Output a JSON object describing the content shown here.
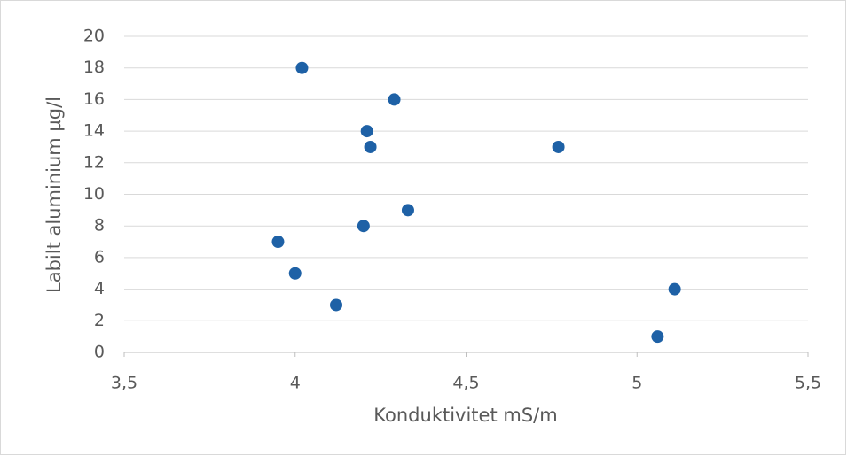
{
  "chart_data": {
    "type": "scatter",
    "x_label": "Konduktivitet mS/m",
    "y_label": "Labilt aluminium µg/l",
    "series": [
      {
        "color": "#1e61a6",
        "x": [
          4.02,
          4.29,
          4.21,
          4.22,
          4.77,
          4.33,
          4.2,
          3.95,
          4.0,
          4.12,
          5.11,
          5.06
        ],
        "values": [
          18,
          16,
          14,
          13,
          13,
          9,
          8,
          7,
          5,
          3,
          4,
          1
        ]
      }
    ],
    "xlim": [
      3.5,
      5.5
    ],
    "xticks": [
      {
        "value": 3.5,
        "label": "3,5"
      },
      4,
      {
        "value": 4.5,
        "label": "4,5"
      },
      5,
      {
        "value": 5.5,
        "label": "5,5"
      }
    ],
    "ylim": [
      0,
      20
    ],
    "yticks": [
      0,
      2,
      4,
      6,
      8,
      10,
      12,
      14,
      16,
      18,
      20
    ],
    "grid": true
  }
}
